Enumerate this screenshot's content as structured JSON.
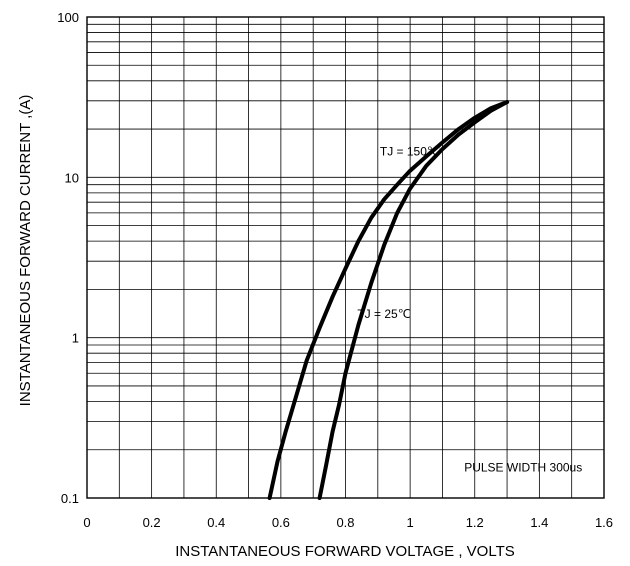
{
  "chart_data": {
    "type": "line",
    "xlabel": "INSTANTANEOUS FORWARD VOLTAGE , VOLTS",
    "ylabel": "INSTANTANEOUS  FORWARD CURRENT ,(A)",
    "xlim": [
      0,
      1.6
    ],
    "ylim": [
      0.1,
      100
    ],
    "y_scale": "log",
    "grid": true,
    "x_ticks": [
      "0",
      "0.2",
      "0.4",
      "0.6",
      "0.8",
      "1",
      "1.2",
      "1.4",
      "1.6"
    ],
    "y_ticks": [
      "0.1",
      "1",
      "10",
      "100"
    ],
    "series": [
      {
        "name": "TJ = 150℃",
        "x": [
          0.565,
          0.59,
          0.615,
          0.65,
          0.68,
          0.72,
          0.76,
          0.8,
          0.84,
          0.88,
          0.92,
          0.96,
          1.0,
          1.05,
          1.1,
          1.15,
          1.2,
          1.25,
          1.3
        ],
        "y": [
          0.1,
          0.17,
          0.26,
          0.45,
          0.72,
          1.15,
          1.8,
          2.7,
          4.0,
          5.6,
          7.3,
          9.0,
          11.0,
          13.5,
          16.5,
          20.0,
          23.5,
          27.0,
          29.5
        ]
      },
      {
        "name": "TJ = 25℃",
        "x": [
          0.72,
          0.74,
          0.76,
          0.78,
          0.8,
          0.84,
          0.88,
          0.92,
          0.96,
          1.0,
          1.05,
          1.1,
          1.15,
          1.2,
          1.25,
          1.3
        ],
        "y": [
          0.1,
          0.16,
          0.26,
          0.38,
          0.6,
          1.2,
          2.2,
          3.8,
          6.0,
          8.5,
          11.8,
          15.0,
          18.5,
          22.0,
          26.0,
          29.5
        ]
      }
    ],
    "annotations": [
      {
        "text": "TJ = 150℃",
        "x": 1.0,
        "y": 14.5
      },
      {
        "text": "TJ = 25℃",
        "x": 0.92,
        "y": 1.4
      },
      {
        "text": "PULSE WIDTH 300us",
        "x": 1.35,
        "y": 0.155
      }
    ]
  }
}
